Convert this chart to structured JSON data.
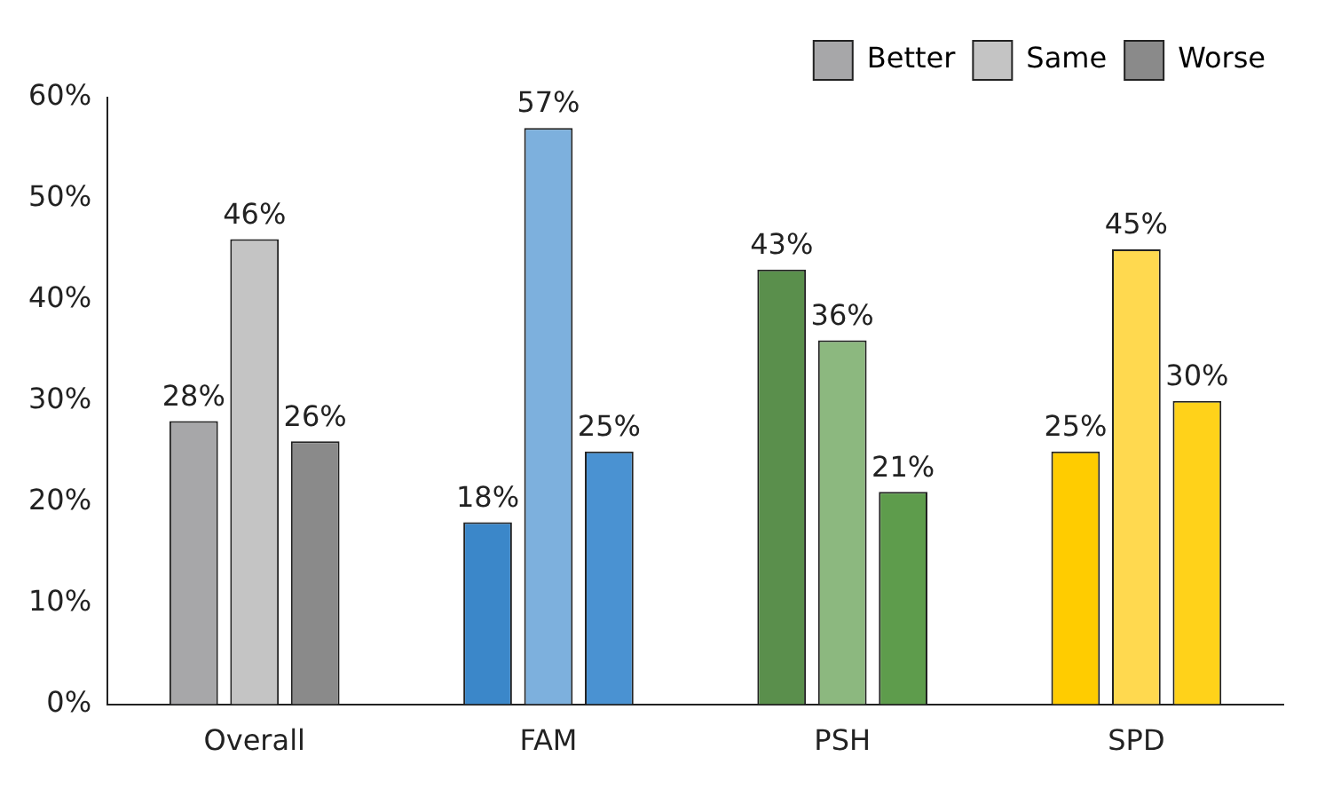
{
  "chart_data": {
    "type": "bar",
    "categories": [
      "Overall",
      "FAM",
      "PSH",
      "SPD"
    ],
    "series": [
      {
        "name": "Better",
        "colors": [
          "#a7a7a9",
          "#3b87c9",
          "#5a8f4c",
          "#ffcc00"
        ],
        "values": [
          28,
          18,
          43,
          25
        ],
        "value_labels": [
          "28%",
          "18%",
          "43%",
          "25%"
        ]
      },
      {
        "name": "Same",
        "colors": [
          "#c4c4c4",
          "#7db0dd",
          "#8cb87f",
          "#ffd94f"
        ],
        "values": [
          46,
          57,
          36,
          45
        ],
        "value_labels": [
          "46%",
          "57%",
          "36%",
          "45%"
        ]
      },
      {
        "name": "Worse",
        "colors": [
          "#8a8a8a",
          "#4a92d2",
          "#5e9c4c",
          "#ffd21a"
        ],
        "values": [
          26,
          25,
          21,
          30
        ],
        "value_labels": [
          "26%",
          "25%",
          "21%",
          "30%"
        ]
      }
    ],
    "ylim": [
      0,
      60
    ],
    "yticks": [
      {
        "value": 0,
        "label": "0%"
      },
      {
        "value": 10,
        "label": "10%"
      },
      {
        "value": 20,
        "label": "20%"
      },
      {
        "value": 30,
        "label": "30%"
      },
      {
        "value": 40,
        "label": "40%"
      },
      {
        "value": 50,
        "label": "50%"
      },
      {
        "value": 60,
        "label": "60%"
      }
    ],
    "grid": false,
    "legend": "top right"
  }
}
